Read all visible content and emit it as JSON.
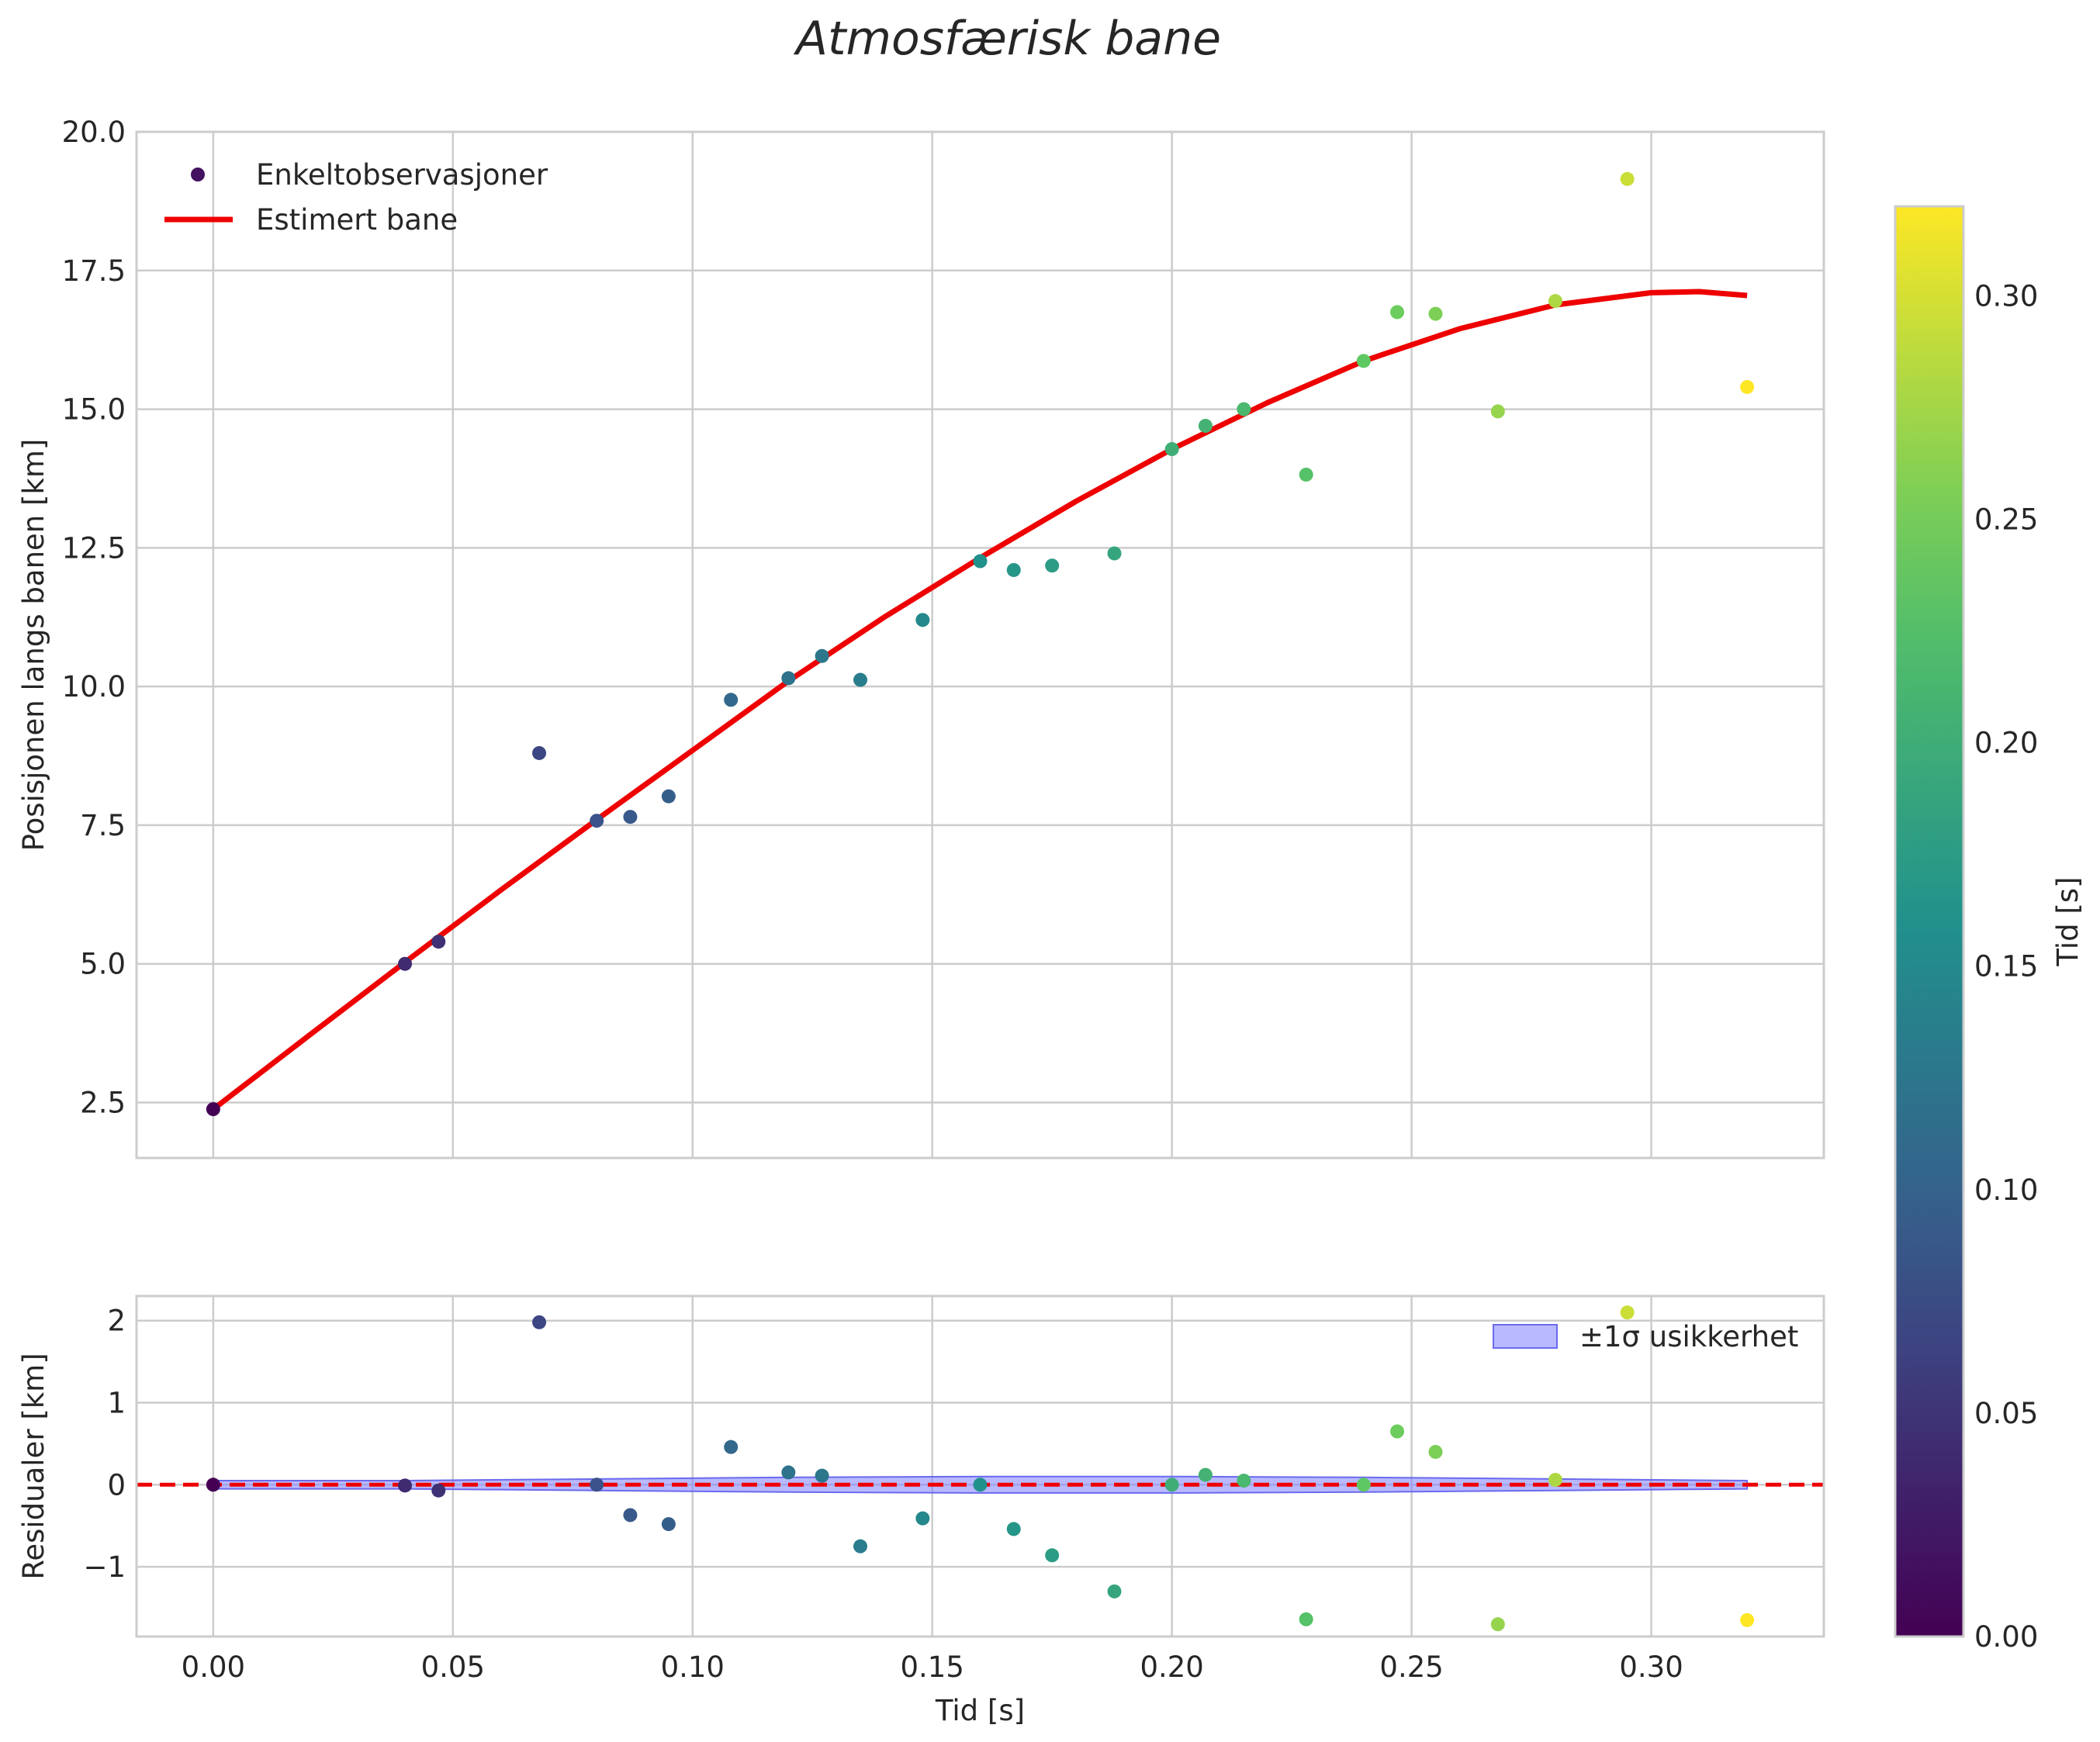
{
  "chart_data": [
    {
      "type": "scatter+line",
      "panel": "main",
      "title": "Atmosfærisk bane",
      "xlabel": "",
      "ylabel": "Posisjonen langs banen [km]",
      "xlim": [
        -0.016,
        0.336
      ],
      "ylim": [
        1.5,
        20.0
      ],
      "xticks": [
        0.0,
        0.05,
        0.1,
        0.15,
        0.2,
        0.25,
        0.3
      ],
      "yticks": [
        2.5,
        5.0,
        7.5,
        10.0,
        12.5,
        15.0,
        17.5,
        20.0
      ],
      "ytick_labels": [
        "2.5",
        "5.0",
        "7.5",
        "10.0",
        "12.5",
        "15.0",
        "17.5",
        "20.0"
      ],
      "grid": true,
      "legend": {
        "placement": "top-left",
        "entries": [
          "Enkeltobservasjoner",
          "Estimert bane"
        ]
      },
      "series": [
        {
          "name": "Enkeltobservasjoner",
          "kind": "scatter",
          "color_by": "x",
          "points": [
            [
              0.0,
              2.38
            ],
            [
              0.04,
              5.0
            ],
            [
              0.047,
              5.4
            ],
            [
              0.068,
              8.8
            ],
            [
              0.08,
              7.58
            ],
            [
              0.087,
              7.65
            ],
            [
              0.095,
              8.02
            ],
            [
              0.108,
              9.76
            ],
            [
              0.12,
              10.15
            ],
            [
              0.127,
              10.55
            ],
            [
              0.135,
              10.12
            ],
            [
              0.148,
              11.2
            ],
            [
              0.16,
              12.26
            ],
            [
              0.167,
              12.1
            ],
            [
              0.175,
              12.18
            ],
            [
              0.188,
              12.4
            ],
            [
              0.2,
              14.28
            ],
            [
              0.207,
              14.7
            ],
            [
              0.215,
              15.0
            ],
            [
              0.228,
              13.82
            ],
            [
              0.24,
              15.87
            ],
            [
              0.247,
              16.75
            ],
            [
              0.255,
              16.72
            ],
            [
              0.268,
              14.96
            ],
            [
              0.28,
              16.95
            ],
            [
              0.295,
              19.15
            ],
            [
              0.32,
              15.4
            ]
          ]
        },
        {
          "name": "Estimert bane",
          "kind": "line",
          "color": "#ee0000",
          "points": [
            [
              0.0,
              2.38
            ],
            [
              0.02,
              3.71
            ],
            [
              0.04,
              5.03
            ],
            [
              0.06,
              6.33
            ],
            [
              0.08,
              7.6
            ],
            [
              0.1,
              8.85
            ],
            [
              0.12,
              10.1
            ],
            [
              0.14,
              11.25
            ],
            [
              0.16,
              12.32
            ],
            [
              0.18,
              13.34
            ],
            [
              0.2,
              14.28
            ],
            [
              0.22,
              15.12
            ],
            [
              0.24,
              15.87
            ],
            [
              0.26,
              16.45
            ],
            [
              0.28,
              16.88
            ],
            [
              0.3,
              17.1
            ],
            [
              0.31,
              17.12
            ],
            [
              0.32,
              17.05
            ]
          ]
        }
      ]
    },
    {
      "type": "scatter",
      "panel": "residuals",
      "title": "",
      "xlabel": "Tid [s]",
      "ylabel": "Residualer [km]",
      "xlim": [
        -0.016,
        0.336
      ],
      "ylim": [
        -1.85,
        2.3
      ],
      "xticks": [
        0.0,
        0.05,
        0.1,
        0.15,
        0.2,
        0.25,
        0.3
      ],
      "xtick_labels": [
        "0.00",
        "0.05",
        "0.10",
        "0.15",
        "0.20",
        "0.25",
        "0.30"
      ],
      "yticks": [
        -1,
        0,
        1,
        2
      ],
      "ytick_labels": [
        "−1",
        "0",
        "1",
        "2"
      ],
      "grid": true,
      "legend": {
        "placement": "top-right",
        "entries": [
          "±1σ usikkerhet"
        ]
      },
      "band": {
        "name": "±1σ usikkerhet",
        "color": "#8080ff",
        "x": [
          0.0,
          0.04,
          0.08,
          0.12,
          0.16,
          0.2,
          0.24,
          0.28,
          0.32
        ],
        "half_width": [
          0.05,
          0.05,
          0.07,
          0.09,
          0.1,
          0.1,
          0.09,
          0.07,
          0.05
        ]
      },
      "zero_line_color": "#ee0000",
      "points": [
        [
          0.0,
          0.0
        ],
        [
          0.04,
          -0.01
        ],
        [
          0.047,
          -0.07
        ],
        [
          0.068,
          1.98
        ],
        [
          0.08,
          0.0
        ],
        [
          0.087,
          -0.37
        ],
        [
          0.095,
          -0.48
        ],
        [
          0.108,
          0.46
        ],
        [
          0.12,
          0.15
        ],
        [
          0.127,
          0.11
        ],
        [
          0.135,
          -0.75
        ],
        [
          0.148,
          -0.41
        ],
        [
          0.16,
          0.0
        ],
        [
          0.167,
          -0.54
        ],
        [
          0.175,
          -0.86
        ],
        [
          0.188,
          -1.3
        ],
        [
          0.2,
          0.0
        ],
        [
          0.207,
          0.12
        ],
        [
          0.215,
          0.05
        ],
        [
          0.228,
          -1.64
        ],
        [
          0.24,
          0.0
        ],
        [
          0.247,
          0.65
        ],
        [
          0.255,
          0.4
        ],
        [
          0.268,
          -1.7
        ],
        [
          0.28,
          0.06
        ],
        [
          0.295,
          2.1
        ],
        [
          0.32,
          -1.65
        ]
      ]
    },
    {
      "type": "colorbar",
      "label": "Tid [s]",
      "colormap": "viridis",
      "range": [
        0.0,
        0.32
      ],
      "ticks": [
        0.0,
        0.05,
        0.1,
        0.15,
        0.2,
        0.25,
        0.3
      ],
      "tick_labels": [
        "0.00",
        "0.05",
        "0.10",
        "0.15",
        "0.20",
        "0.25",
        "0.30"
      ]
    }
  ]
}
